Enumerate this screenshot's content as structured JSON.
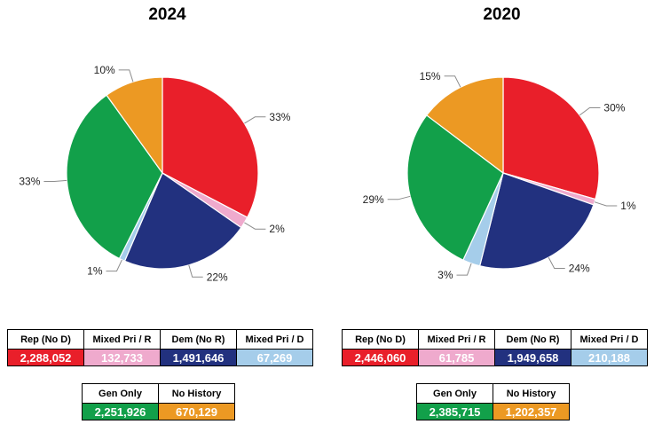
{
  "colors": {
    "rep": "#e91f2a",
    "mixed_r": "#efaacd",
    "dem": "#22317f",
    "mixed_d": "#a5cdea",
    "gen": "#12a04a",
    "nohist": "#ec9923"
  },
  "chart_data": [
    {
      "type": "pie",
      "title": "2024",
      "slices": [
        {
          "key": "rep",
          "label": "33%",
          "value": 33
        },
        {
          "key": "mixed_r",
          "label": "2%",
          "value": 2
        },
        {
          "key": "dem",
          "label": "22%",
          "value": 22
        },
        {
          "key": "mixed_d",
          "label": "1%",
          "value": 1
        },
        {
          "key": "gen",
          "label": "33%",
          "value": 33
        },
        {
          "key": "nohist",
          "label": "10%",
          "value": 10
        }
      ],
      "table_top": [
        {
          "key": "rep",
          "header": "Rep (No D)",
          "value": "2,288,052"
        },
        {
          "key": "mixed_r",
          "header": "Mixed Pri / R",
          "value": "132,733"
        },
        {
          "key": "dem",
          "header": "Dem (No R)",
          "value": "1,491,646"
        },
        {
          "key": "mixed_d",
          "header": "Mixed Pri / D",
          "value": "67,269"
        }
      ],
      "table_bottom": [
        {
          "key": "gen",
          "header": "Gen Only",
          "value": "2,251,926"
        },
        {
          "key": "nohist",
          "header": "No History",
          "value": "670,129"
        }
      ]
    },
    {
      "type": "pie",
      "title": "2020",
      "slices": [
        {
          "key": "rep",
          "label": "30%",
          "value": 30
        },
        {
          "key": "mixed_r",
          "label": "1%",
          "value": 1
        },
        {
          "key": "dem",
          "label": "24%",
          "value": 24
        },
        {
          "key": "mixed_d",
          "label": "3%",
          "value": 3
        },
        {
          "key": "gen",
          "label": "29%",
          "value": 29
        },
        {
          "key": "nohist",
          "label": "15%",
          "value": 15
        }
      ],
      "table_top": [
        {
          "key": "rep",
          "header": "Rep (No D)",
          "value": "2,446,060"
        },
        {
          "key": "mixed_r",
          "header": "Mixed Pri / R",
          "value": "61,785"
        },
        {
          "key": "dem",
          "header": "Dem (No R)",
          "value": "1,949,658"
        },
        {
          "key": "mixed_d",
          "header": "Mixed Pri / D",
          "value": "210,188"
        }
      ],
      "table_bottom": [
        {
          "key": "gen",
          "header": "Gen Only",
          "value": "2,385,715"
        },
        {
          "key": "nohist",
          "header": "No History",
          "value": "1,202,357"
        }
      ]
    }
  ]
}
